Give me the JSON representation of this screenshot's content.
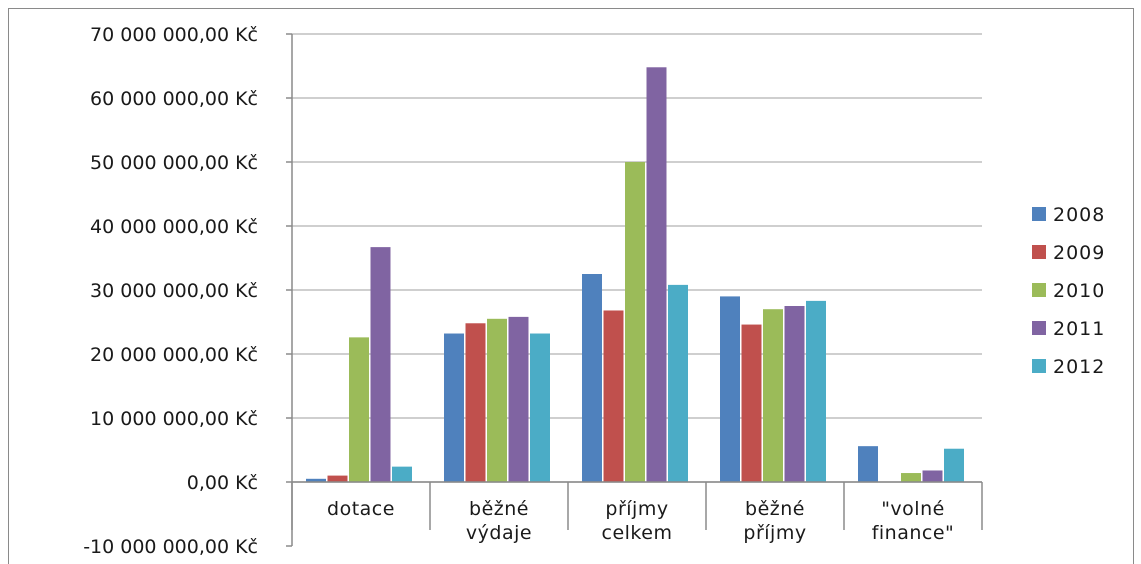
{
  "chart_data": {
    "type": "bar",
    "title": "",
    "xlabel": "",
    "ylabel": "",
    "ylim": [
      -10000000,
      70000000
    ],
    "y_step": 10000000,
    "grid": true,
    "legend_position": "right",
    "y_tick_labels": [
      "-10 000 000,00 Kč",
      "0,00 Kč",
      "10 000 000,00 Kč",
      "20 000 000,00 Kč",
      "30 000 000,00 Kč",
      "40 000 000,00 Kč",
      "50 000 000,00 Kč",
      "60 000 000,00 Kč",
      "70 000 000,00 Kč"
    ],
    "negative_tick_color": "#ff0000",
    "categories": [
      [
        "dotace"
      ],
      [
        "běžné",
        "výdaje"
      ],
      [
        "příjmy",
        "celkem"
      ],
      [
        "běžné",
        "příjmy"
      ],
      [
        "\"volné",
        "finance\""
      ]
    ],
    "series": [
      {
        "name": "2008",
        "color": "#4f81bd",
        "values": [
          500000,
          23200000,
          32500000,
          29000000,
          5600000
        ]
      },
      {
        "name": "2009",
        "color": "#c0504d",
        "values": [
          1000000,
          24800000,
          26800000,
          24600000,
          0
        ]
      },
      {
        "name": "2010",
        "color": "#9bbb59",
        "values": [
          22600000,
          25500000,
          50000000,
          27000000,
          1400000
        ]
      },
      {
        "name": "2011",
        "color": "#8064a2",
        "values": [
          36700000,
          25800000,
          64800000,
          27500000,
          1800000
        ]
      },
      {
        "name": "2012",
        "color": "#4bacc6",
        "values": [
          2400000,
          23200000,
          30800000,
          28300000,
          5200000
        ]
      }
    ]
  }
}
